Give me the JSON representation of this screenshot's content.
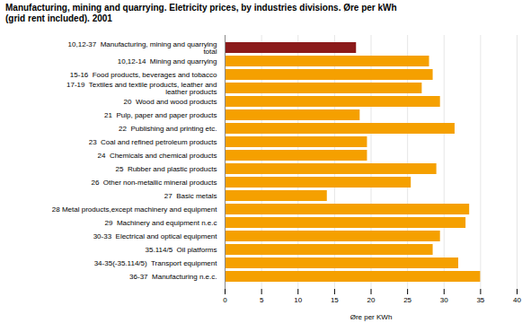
{
  "chart_data": {
    "type": "bar",
    "orientation": "horizontal",
    "title": "Manufacturing, mining and quarrying. Eletricity prices, by industries divisions. Øre per kWh\n(grid rent included). 2001",
    "categories": [
      "10,12-37  Manufacturing, mining and quarrying\ntotal",
      "10,12-14  Mining and quarrying",
      "15-16  Food products, beverages and tobacco",
      "17-19  Textiles and textile products, leather and\nleather products",
      "20  Wood and wood products",
      "21  Pulp, paper and paper products",
      "22  Publishing and printing etc.",
      "23  Coal and refined petroleum products",
      "24  Chemicals and chemical products",
      "25  Rubber and plastic products",
      "26  Other non-metallic mineral products",
      "27  Basic metals",
      "28 Metal products,except machinery and equipment",
      "29  Machinery and equipment n.e.c",
      "30-33  Electrical and optical equipment",
      "35.114/5  Oil platforms",
      "34-35(-35.114/5)  Transport equipment",
      "36-37  Manufacturing n.e.c."
    ],
    "values": [
      18.0,
      28.0,
      28.5,
      27.0,
      29.5,
      18.5,
      31.5,
      19.5,
      19.5,
      29.0,
      25.5,
      14.0,
      33.5,
      33.0,
      29.5,
      28.5,
      32.0,
      35.0
    ],
    "colors": [
      "#8b1a1a",
      "#f5a000",
      "#f5a000",
      "#f5a000",
      "#f5a000",
      "#f5a000",
      "#f5a000",
      "#f5a000",
      "#f5a000",
      "#f5a000",
      "#f5a000",
      "#f5a000",
      "#f5a000",
      "#f5a000",
      "#f5a000",
      "#f5a000",
      "#f5a000",
      "#f5a000"
    ],
    "xlabel": "Øre per KWh",
    "xlim": [
      0,
      40
    ],
    "xticks": [
      0,
      5,
      10,
      15,
      20,
      25,
      30,
      35,
      40
    ],
    "grid": true
  }
}
